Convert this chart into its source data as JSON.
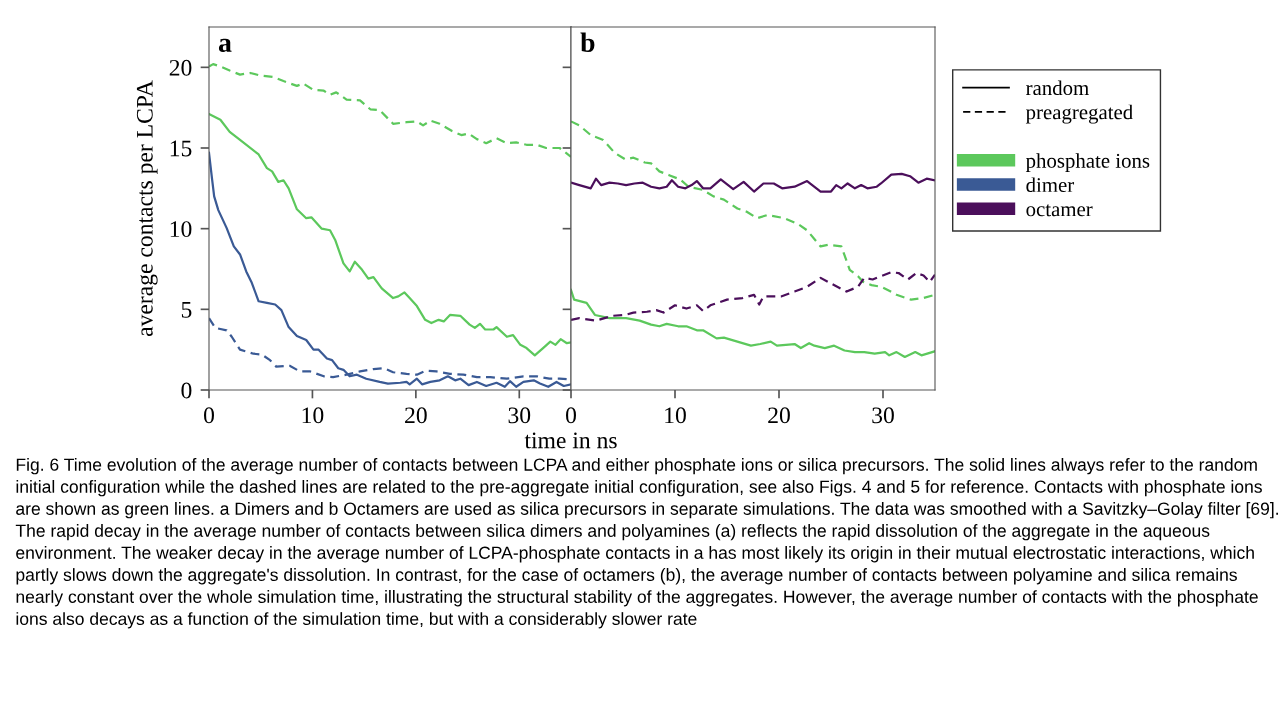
{
  "chart_data": [
    {
      "type": "line",
      "title": "a",
      "xlabel": "time in ns",
      "ylabel": "average contacts per LCPA",
      "xlim": [
        0,
        35
      ],
      "ylim": [
        0,
        22.5
      ],
      "xticks": [
        0,
        10,
        20,
        30
      ],
      "yticks": [
        0,
        5,
        10,
        15,
        20
      ],
      "grid": false,
      "legend": "right",
      "annotations": [
        "Fig. 6 Time evolution of the average number of contacts between LCPA and either phosphate ions or silica precursors. The solid lines always refer to the random initial configuration while the dashed lines are related to the pre-aggregate initial configuration, see also Figs. 4 and 5 for reference. Contacts with phosphate ions are shown as green lines. a Dimers and b Octamers are used as silica precursors in separate simulations. The data was smoothed with a Savitzky–Golay filter [69]. The rapid decay in the average number of contacts between silica dimers and polyamines (a) reflects the rapid dissolution of the aggregate in the aqueous environment. The weaker decay in the average number of LCPA-phosphate contacts in a has most likely its origin in their mutual electrostatic interactions, which partly slows down the aggregate's dissolution. In contrast, for the case of octamers (b), the average number of contacts between polyamine and silica remains nearly constant over the whole simulation time, illustrating the structural stability of the aggregates. However, the average number of contacts with the phosphate ions also decays as a function of the simulation time, but with a considerably slower rate"
      ],
      "series": [
        {
          "name": "phosphate ions",
          "color": "#5cc85c",
          "line_style": "solid",
          "x": [
            0,
            1.1,
            2.0,
            3.0,
            4.8,
            5.6,
            6.1,
            6.7,
            7.2,
            7.7,
            8.5,
            9.4,
            9.9,
            10.9,
            11.7,
            12.2,
            13.0,
            13.6,
            14.1,
            14.8,
            15.4,
            15.9,
            16.7,
            17.8,
            18.3,
            18.9,
            19.4,
            20.1,
            20.9,
            21.5,
            22.2,
            22.7,
            23.3,
            24.3,
            25.2,
            25.7,
            26.2,
            26.7,
            27.5,
            27.8,
            28.8,
            29.4,
            30.1,
            30.7,
            31.5,
            32.3,
            33.0,
            33.5,
            34.0,
            34.6,
            35
          ],
          "values": [
            17.1,
            16.75,
            16.0,
            15.5,
            14.6,
            13.75,
            13.55,
            12.9,
            13.0,
            12.5,
            11.2,
            10.65,
            10.7,
            10.0,
            9.9,
            9.3,
            7.85,
            7.35,
            7.95,
            7.45,
            6.9,
            7.0,
            6.3,
            5.7,
            5.8,
            6.05,
            5.7,
            5.2,
            4.35,
            4.15,
            4.35,
            4.25,
            4.65,
            4.6,
            4.05,
            3.85,
            4.1,
            3.75,
            3.75,
            3.9,
            3.3,
            3.4,
            2.8,
            2.6,
            2.15,
            2.6,
            3.0,
            2.8,
            3.15,
            2.9,
            2.95
          ]
        },
        {
          "color": "#5cc85c",
          "line_style": "dashed",
          "x": [
            0,
            0.4,
            1.1,
            2.0,
            3.0,
            4.0,
            4.9,
            6.2,
            7.2,
            8.5,
            9.1,
            10.1,
            11.1,
            11.7,
            12.3,
            13.3,
            14.6,
            15.6,
            16.5,
            17.8,
            19.1,
            20.1,
            20.7,
            21.4,
            22.3,
            23.5,
            24.4,
            25.1,
            25.9,
            26.8,
            27.8,
            28.8,
            29.7,
            30.7,
            31.7,
            32.6,
            33.9,
            35
          ],
          "values": [
            20.05,
            20.2,
            20.05,
            19.8,
            19.55,
            19.65,
            19.5,
            19.4,
            19.15,
            18.85,
            19.0,
            18.6,
            18.55,
            18.3,
            18.45,
            18.0,
            17.95,
            17.4,
            17.35,
            16.5,
            16.6,
            16.65,
            16.4,
            16.7,
            16.5,
            16.05,
            15.8,
            15.9,
            15.55,
            15.3,
            15.6,
            15.3,
            15.35,
            15.2,
            15.2,
            15.0,
            15.0,
            14.45
          ]
        },
        {
          "name": "dimer",
          "color": "#3a5a95",
          "line_style": "solid",
          "x": [
            0,
            0.3,
            0.5,
            0.9,
            1.7,
            2.4,
            3.0,
            3.6,
            4.1,
            4.8,
            5.6,
            6.4,
            7.0,
            7.7,
            8.5,
            9.4,
            10.1,
            10.6,
            11.4,
            11.9,
            12.5,
            13.0,
            13.6,
            14.3,
            15.2,
            16.5,
            17.3,
            18.5,
            19.1,
            19.4,
            20.1,
            20.6,
            21.4,
            22.3,
            23.1,
            23.8,
            24.3,
            25.1,
            25.9,
            26.8,
            27.8,
            28.6,
            29.1,
            29.7,
            30.4,
            31.4,
            32.0,
            32.8,
            33.6,
            34.3,
            35
          ],
          "values": [
            14.7,
            13.05,
            12.0,
            11.15,
            10.05,
            8.9,
            8.4,
            7.35,
            6.7,
            5.5,
            5.4,
            5.3,
            4.95,
            3.9,
            3.35,
            3.1,
            2.5,
            2.5,
            1.95,
            1.85,
            1.35,
            1.25,
            0.85,
            0.95,
            0.7,
            0.5,
            0.4,
            0.45,
            0.5,
            0.35,
            0.7,
            0.35,
            0.5,
            0.6,
            0.85,
            0.6,
            0.7,
            0.3,
            0.5,
            0.25,
            0.45,
            0.2,
            0.55,
            0.2,
            0.5,
            0.6,
            0.4,
            0.2,
            0.5,
            0.25,
            0.35
          ]
        },
        {
          "color": "#3a5a95",
          "line_style": "dashed",
          "x": [
            0,
            0.6,
            1.7,
            2.2,
            3.0,
            4.3,
            5.1,
            5.9,
            6.5,
            7.8,
            8.8,
            9.8,
            11.1,
            12.0,
            13.3,
            14.6,
            15.9,
            16.9,
            17.8,
            19.1,
            20.1,
            21.0,
            22.0,
            23.3,
            24.6,
            25.9,
            27.2,
            28.8,
            30.4,
            31.7,
            32.9,
            33.9,
            35
          ],
          "values": [
            4.45,
            3.85,
            3.7,
            3.3,
            2.5,
            2.25,
            2.2,
            1.85,
            1.45,
            1.5,
            1.15,
            1.15,
            0.85,
            0.8,
            0.95,
            1.15,
            1.3,
            1.35,
            1.1,
            1.0,
            0.95,
            1.2,
            1.15,
            1.0,
            0.95,
            0.8,
            0.8,
            0.7,
            0.85,
            0.85,
            0.7,
            0.7,
            0.65
          ]
        }
      ]
    },
    {
      "type": "line",
      "title": "b",
      "xlim": [
        0,
        35
      ],
      "ylim": [
        0,
        22.5
      ],
      "xticks": [
        0,
        10,
        20,
        30
      ],
      "yticks": [
        0,
        5,
        10,
        15,
        20
      ],
      "grid": false,
      "legend": "right",
      "tick_labels": "x",
      "annotations": [
        "random",
        "preagregated"
      ],
      "series": [
        {
          "color": "#5cc85c",
          "line_style": "solid",
          "x": [
            0,
            0.3,
            1.5,
            2.3,
            3.7,
            5.3,
            6.6,
            7.7,
            8.5,
            9.2,
            10.3,
            11.1,
            12.1,
            12.7,
            14.0,
            14.7,
            16.0,
            17.3,
            18.2,
            19.2,
            19.8,
            21.5,
            22.1,
            22.9,
            23.4,
            24.4,
            25.3,
            26.3,
            27.3,
            28.2,
            29.2,
            30.2,
            30.6,
            31.3,
            32.1,
            33.1,
            33.7,
            35
          ],
          "values": [
            6.2,
            5.6,
            5.4,
            4.65,
            4.45,
            4.45,
            4.3,
            4.05,
            3.95,
            4.1,
            3.95,
            3.95,
            3.7,
            3.7,
            3.2,
            3.25,
            3.0,
            2.75,
            2.85,
            3.0,
            2.75,
            2.85,
            2.6,
            2.9,
            2.75,
            2.6,
            2.75,
            2.45,
            2.35,
            2.35,
            2.25,
            2.35,
            2.15,
            2.35,
            2.05,
            2.35,
            2.15,
            2.4
          ]
        },
        {
          "color": "#5cc85c",
          "line_style": "dashed",
          "x": [
            0,
            0.8,
            1.9,
            3.1,
            4.2,
            5.2,
            6.0,
            7.1,
            7.7,
            8.5,
            9.5,
            10.5,
            11.3,
            12.7,
            13.7,
            14.7,
            16.0,
            16.9,
            17.9,
            18.9,
            20.5,
            21.8,
            22.7,
            24.0,
            24.7,
            26.0,
            26.8,
            27.6,
            28.1,
            28.9,
            29.8,
            30.6,
            31.3,
            32.7,
            33.9,
            35
          ],
          "values": [
            16.65,
            16.4,
            15.8,
            15.5,
            14.7,
            14.3,
            14.4,
            14.1,
            14.05,
            13.55,
            13.3,
            13.05,
            12.6,
            12.4,
            12.0,
            11.8,
            11.25,
            11.05,
            10.65,
            10.85,
            10.65,
            10.3,
            9.9,
            8.9,
            9.0,
            8.9,
            7.45,
            7.05,
            6.7,
            6.5,
            6.4,
            6.15,
            5.9,
            5.6,
            5.7,
            5.9
          ]
        },
        {
          "name": "octamer",
          "color": "#4b0f5b",
          "line_style": "solid",
          "x": [
            0,
            0.8,
            1.9,
            2.4,
            2.9,
            3.7,
            4.5,
            5.3,
            6.1,
            6.9,
            7.7,
            8.5,
            9.2,
            9.7,
            10.3,
            11.0,
            11.6,
            12.1,
            12.7,
            13.4,
            14.4,
            15.6,
            16.6,
            17.6,
            18.5,
            19.5,
            20.3,
            21.5,
            22.7,
            24.0,
            25.0,
            25.5,
            26.0,
            26.6,
            27.3,
            27.9,
            28.5,
            29.4,
            29.8,
            30.8,
            31.8,
            32.6,
            33.4,
            34.2,
            35
          ],
          "values": [
            12.85,
            12.7,
            12.5,
            13.1,
            12.7,
            12.85,
            12.8,
            12.7,
            12.8,
            12.85,
            12.6,
            12.5,
            12.6,
            13.0,
            12.6,
            12.5,
            12.7,
            12.95,
            12.5,
            12.5,
            13.05,
            12.45,
            12.9,
            12.3,
            12.8,
            12.8,
            12.5,
            12.6,
            12.95,
            12.3,
            12.3,
            12.7,
            12.5,
            12.8,
            12.5,
            12.7,
            12.5,
            12.6,
            12.8,
            13.35,
            13.4,
            13.25,
            12.85,
            13.1,
            13.0
          ]
        },
        {
          "color": "#4b0f5b",
          "line_style": "dashed",
          "x": [
            0,
            0.8,
            2.4,
            4.0,
            5.2,
            6.0,
            7.3,
            8.2,
            8.9,
            10.0,
            11.1,
            12.1,
            12.7,
            13.4,
            15.0,
            16.5,
            17.6,
            18.1,
            18.5,
            20.2,
            21.5,
            22.7,
            24.0,
            25.0,
            25.6,
            26.5,
            27.6,
            28.2,
            29.0,
            29.8,
            30.8,
            31.5,
            32.4,
            33.2,
            33.9,
            34.5,
            35
          ],
          "values": [
            4.35,
            4.45,
            4.3,
            4.6,
            4.65,
            4.8,
            4.85,
            4.95,
            4.8,
            5.25,
            5.05,
            5.25,
            4.9,
            5.25,
            5.6,
            5.7,
            5.9,
            5.3,
            5.8,
            5.8,
            6.1,
            6.4,
            6.95,
            6.6,
            6.4,
            6.1,
            6.4,
            6.95,
            6.85,
            7.05,
            7.3,
            7.25,
            6.85,
            7.25,
            7.1,
            6.7,
            7.15
          ]
        }
      ]
    }
  ]
}
